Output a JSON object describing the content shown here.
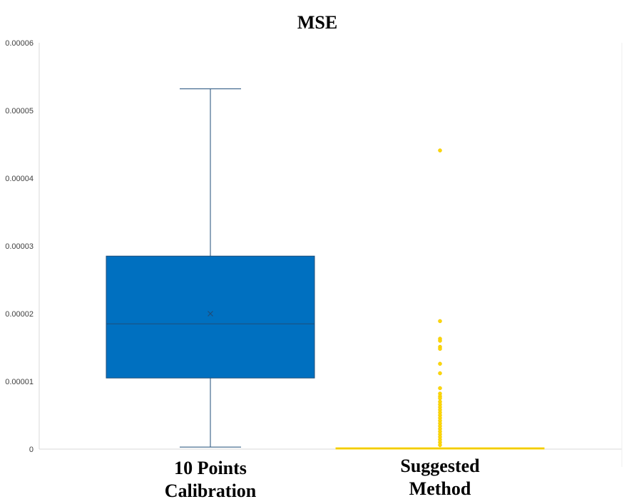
{
  "chart_data": {
    "type": "box",
    "title": "MSE",
    "xlabel": "",
    "ylabel": "",
    "ylim": [
      0,
      6e-05
    ],
    "yticks": [
      "0",
      "0.00001",
      "0.00002",
      "0.00003",
      "0.00004",
      "0.00005",
      "0.00006"
    ],
    "grid": false,
    "legend": "none",
    "categories": [
      [
        "10 Points",
        "Calibration"
      ],
      [
        "Suggested",
        "Method"
      ]
    ],
    "boxes": [
      {
        "category_index": 0,
        "color": "#0070C0",
        "whisker_low": 3e-07,
        "q1": 1.05e-05,
        "median": 1.85e-05,
        "q3": 2.85e-05,
        "whisker_high": 5.32e-05,
        "mean": 2e-05,
        "outliers": []
      },
      {
        "category_index": 1,
        "color": "#FFD700",
        "whisker_low": 0,
        "q1": 0,
        "median": 1e-07,
        "q3": 2e-07,
        "whisker_high": 3e-07,
        "mean": 2e-07,
        "outliers": [
          4.41e-05,
          1.89e-05,
          1.63e-05,
          1.6e-05,
          1.51e-05,
          1.48e-05,
          1.26e-05,
          1.12e-05,
          9e-06,
          8.2e-06,
          7.8e-06,
          7.5e-06,
          7e-06,
          6.6e-06,
          6.2e-06,
          5.8e-06,
          5.4e-06,
          5e-06,
          4.6e-06,
          4.2e-06,
          3.8e-06,
          3.4e-06,
          3e-06,
          2.6e-06,
          2.2e-06,
          1.8e-06,
          1.4e-06,
          1e-06,
          6e-07
        ]
      }
    ]
  }
}
